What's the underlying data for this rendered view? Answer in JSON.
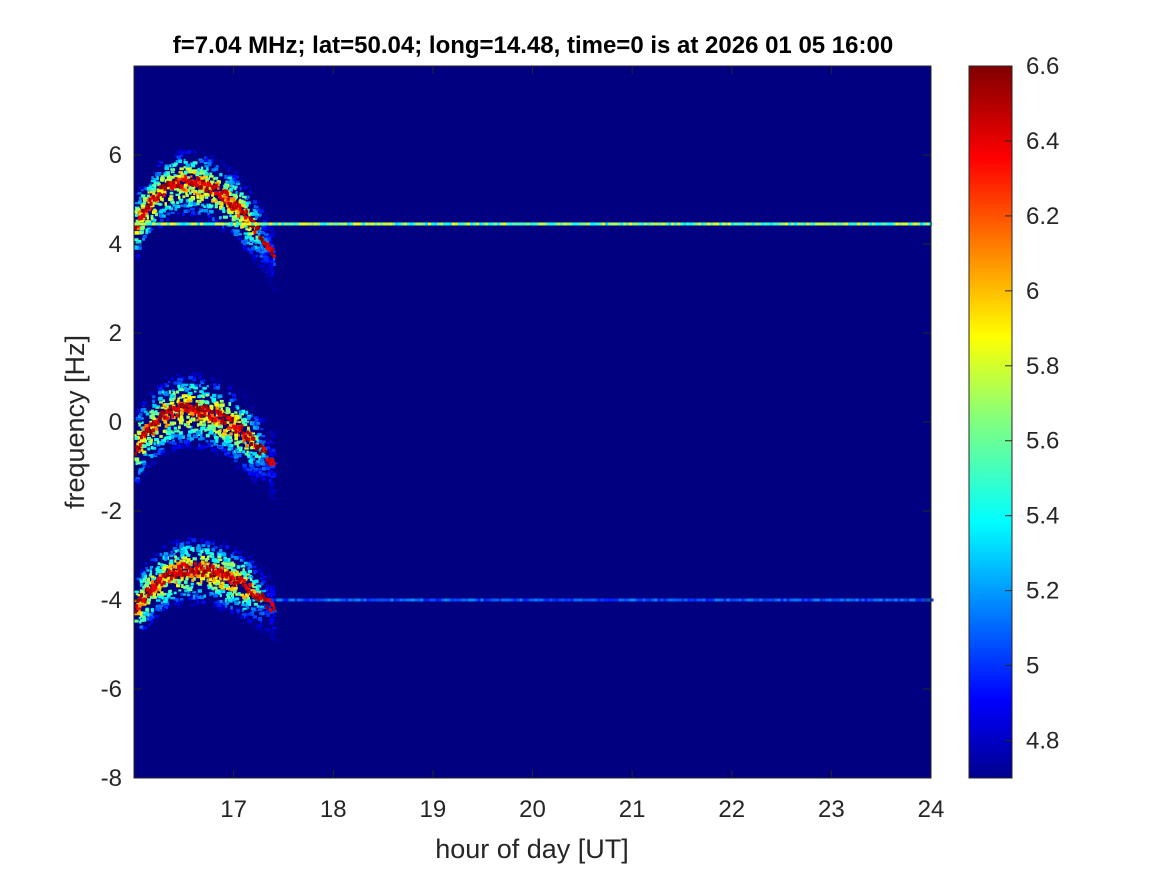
{
  "chart_data": {
    "type": "heatmap",
    "title": "f=7.04 MHz;  lat=50.04; long=14.48, time=0 is at 2026 01 05 16:00",
    "xlabel": "hour of day [UT]",
    "ylabel": "frequency [Hz]",
    "xlim": [
      16,
      24
    ],
    "ylim": [
      -8,
      8
    ],
    "xticks": [
      "17",
      "18",
      "19",
      "20",
      "21",
      "22",
      "23",
      "24"
    ],
    "xtick_values": [
      17,
      18,
      19,
      20,
      21,
      22,
      23,
      24
    ],
    "yticks": [
      "6",
      "4",
      "2",
      "0",
      "-2",
      "-4",
      "-6",
      "-8"
    ],
    "ytick_values": [
      6,
      4,
      2,
      0,
      -2,
      -4,
      -6,
      -8
    ],
    "colorbar": {
      "range": [
        4.7,
        6.6
      ],
      "ticks": [
        "6.6",
        "6.4",
        "6.2",
        "6",
        "5.8",
        "5.6",
        "5.4",
        "5.2",
        "5",
        "4.8"
      ],
      "tick_values": [
        6.6,
        6.4,
        6.2,
        6.0,
        5.8,
        5.6,
        5.4,
        5.2,
        5.0,
        4.8
      ],
      "colormap": "jet"
    },
    "background_value": 4.7,
    "features": [
      {
        "kind": "arc",
        "x_start": 16.0,
        "x_peak": 16.5,
        "x_end": 17.4,
        "y_start": 4.4,
        "y_peak": 5.4,
        "y_end": 3.7,
        "spread": 0.9,
        "peak_value": 6.6
      },
      {
        "kind": "arc",
        "x_start": 16.0,
        "x_peak": 16.5,
        "x_end": 17.4,
        "y_start": -0.6,
        "y_peak": 0.3,
        "y_end": -1.0,
        "spread": 1.0,
        "peak_value": 6.6
      },
      {
        "kind": "arc",
        "x_start": 16.0,
        "x_peak": 16.55,
        "x_end": 17.4,
        "y_start": -4.2,
        "y_peak": -3.3,
        "y_end": -4.2,
        "spread": 0.9,
        "peak_value": 6.6
      },
      {
        "kind": "line",
        "x_start": 16.0,
        "x_end": 24.0,
        "y": 4.45,
        "value": 5.9
      },
      {
        "kind": "line",
        "x_start": 17.4,
        "x_end": 24.0,
        "y": -4.0,
        "value": 5.2
      }
    ],
    "grid": false
  },
  "colors": {
    "background": "#000080",
    "axis": "#262626"
  }
}
